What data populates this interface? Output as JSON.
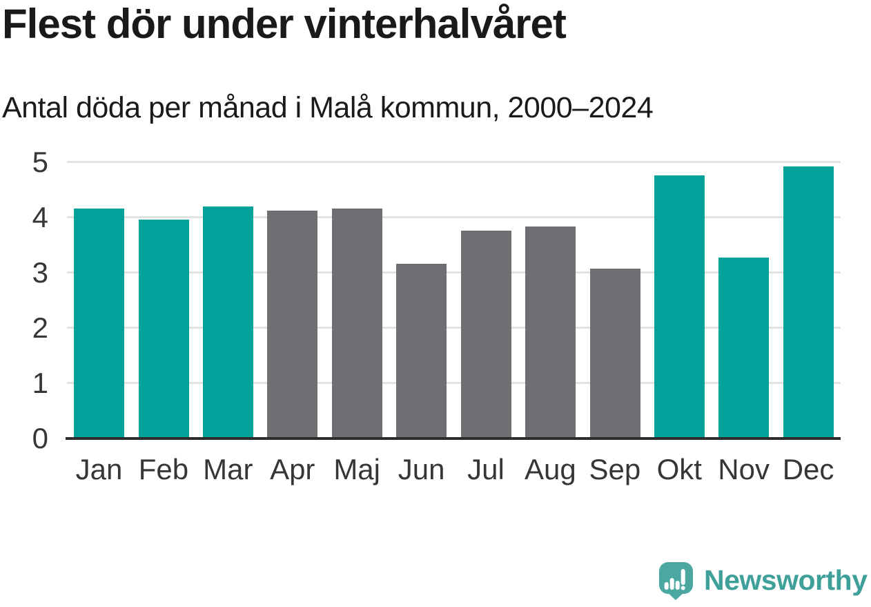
{
  "chart_data": {
    "type": "bar",
    "title": "Flest dör under vinterhalvåret",
    "subtitle": "Antal döda per månad i Malå kommun, 2000–2024",
    "categories": [
      "Jan",
      "Feb",
      "Mar",
      "Apr",
      "Maj",
      "Jun",
      "Jul",
      "Aug",
      "Sep",
      "Okt",
      "Nov",
      "Dec"
    ],
    "values": [
      4.16,
      3.96,
      4.2,
      4.12,
      4.16,
      3.16,
      3.76,
      3.84,
      3.08,
      4.76,
      3.28,
      4.92
    ],
    "bar_groups": [
      "winter",
      "winter",
      "winter",
      "summer",
      "summer",
      "summer",
      "summer",
      "summer",
      "summer",
      "winter",
      "winter",
      "winter"
    ],
    "group_colors": {
      "winter": "#00a29a",
      "summer": "#6e6e73"
    },
    "xlabel": "",
    "ylabel": "",
    "ylim": [
      0,
      5
    ],
    "yticks": [
      0,
      1,
      2,
      3,
      4,
      5
    ],
    "grid": true,
    "legend": "none"
  },
  "branding": {
    "logo_text": "Newsworthy",
    "logo_icon": "newsworthy-pin-bar-chart-icon"
  },
  "colors": {
    "background": "#ffffff",
    "text_dark": "#1a1a1a",
    "axis_label": "#363636",
    "gridline": "#e2e2e2",
    "axis_line": "#2d2d2d",
    "accent_teal": "#00a29a",
    "neutral_gray": "#6e6e73",
    "logo_teal": "#4ba7a0",
    "logo_glyph_white": "#ffffff",
    "logo_text_teal": "#3fa09a"
  }
}
